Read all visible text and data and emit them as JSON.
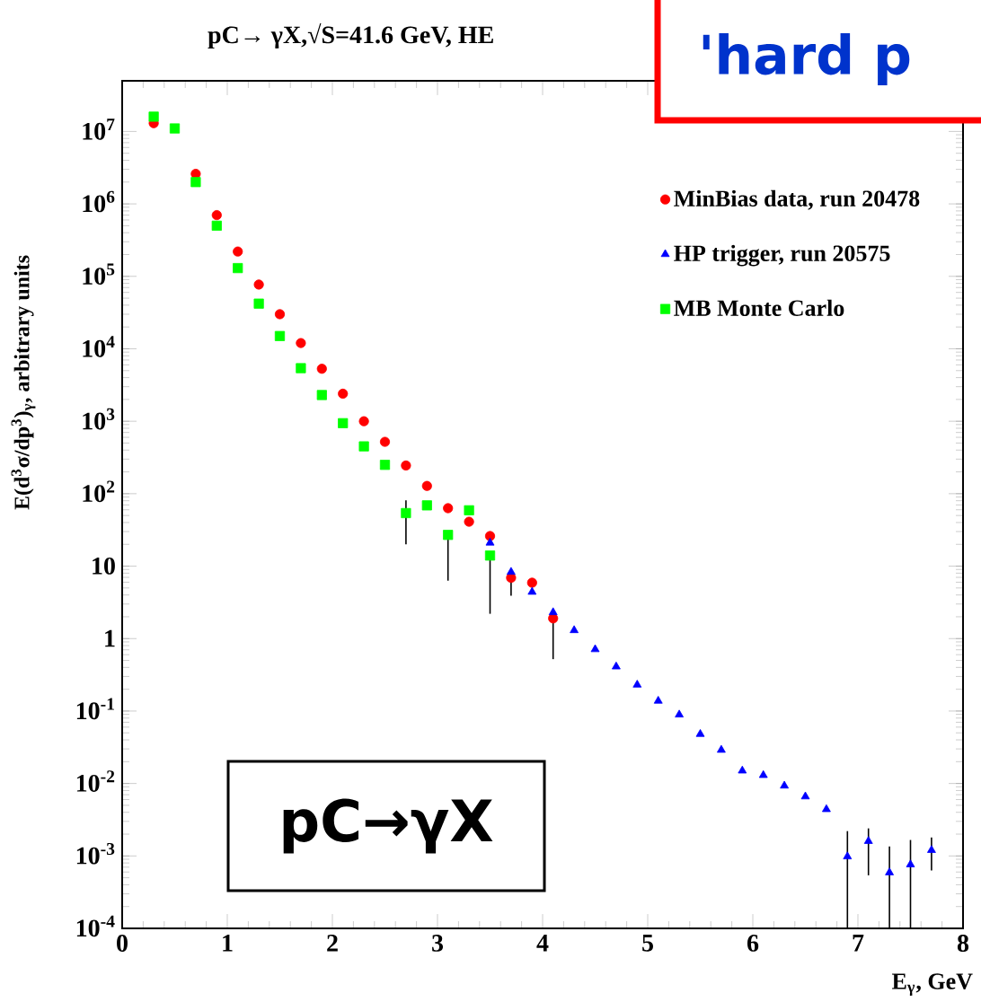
{
  "chart_data": {
    "type": "scatter",
    "title": "pC→ γX,√S=41.6 GeV,  HE",
    "xlabel": "E$_{γ}$, GeV",
    "ylabel": "E(d$^{3}$σ/dp$^{3}$)$_{γ}$, arbitrary units",
    "annotations": [
      "'hard p",
      "pC→γX"
    ],
    "xlim": [
      0,
      8
    ],
    "xticks": [
      0,
      1,
      2,
      3,
      4,
      5,
      6,
      7,
      8
    ],
    "ylim": [
      0.0001,
      50000000
    ],
    "yticks": [
      {
        "value": 0.0001,
        "label": "10$^{-4}$"
      },
      {
        "value": 0.001,
        "label": "10$^{-3}$"
      },
      {
        "value": 0.01,
        "label": "10$^{-2}$"
      },
      {
        "value": 0.1,
        "label": "10$^{-1}$"
      },
      1,
      10,
      {
        "value": 100,
        "label": "10$^{2}$"
      },
      {
        "value": 1000,
        "label": "10$^{3}$"
      },
      {
        "value": 10000,
        "label": "10$^{4}$"
      },
      {
        "value": 100000,
        "label": "10$^{5}$"
      },
      {
        "value": 1000000,
        "label": "10$^{6}$"
      },
      {
        "value": 10000000,
        "label": "10$^{7}$"
      }
    ],
    "log": "y",
    "legend": "top right",
    "series": [
      {
        "name": "MinBias data,  run 20478",
        "color": "#ff0000",
        "marker": "circle",
        "x": [
          0.3,
          0.5,
          0.7,
          0.9,
          1.1,
          1.3,
          1.5,
          1.7,
          1.9,
          2.1,
          2.3,
          2.5,
          2.7,
          2.9,
          3.1,
          3.3,
          3.5,
          3.7,
          3.9,
          4.1
        ],
        "values": [
          13000000,
          null,
          2600000,
          700000,
          220000,
          77000,
          30000,
          12000,
          5300,
          2400,
          1000,
          520,
          245,
          128,
          63,
          41,
          26,
          6.9,
          5.9,
          1.9
        ],
        "errors": [
          null,
          null,
          null,
          null,
          null,
          null,
          null,
          null,
          null,
          null,
          null,
          null,
          null,
          null,
          null,
          null,
          null,
          [
            3.9,
            9
          ],
          null,
          [
            0.52,
            2.5
          ]
        ]
      },
      {
        "name": "HP trigger, run 20575",
        "color": "#0000ff",
        "marker": "triangle",
        "x": [
          3.5,
          3.7,
          3.9,
          4.1,
          4.3,
          4.5,
          4.7,
          4.9,
          5.1,
          5.3,
          5.5,
          5.7,
          5.9,
          6.1,
          6.3,
          6.5,
          6.7,
          6.9,
          7.1,
          7.3,
          7.5,
          7.7
        ],
        "values": [
          21,
          8.3,
          4.4,
          2.3,
          1.3,
          0.71,
          0.41,
          0.23,
          0.138,
          0.089,
          0.048,
          0.029,
          0.015,
          0.013,
          0.0093,
          0.0066,
          0.0044,
          0.00098,
          0.0016,
          0.00059,
          0.00076,
          0.0012
        ],
        "errors": [
          null,
          null,
          null,
          null,
          null,
          null,
          null,
          null,
          null,
          null,
          null,
          null,
          null,
          null,
          null,
          null,
          null,
          [
            0.0001,
            0.0022
          ],
          [
            0.00054,
            0.0024
          ],
          [
            0.0001,
            0.00135
          ],
          [
            0.0001,
            0.00166
          ],
          [
            0.00063,
            0.0018
          ]
        ]
      },
      {
        "name": "MB Monte Carlo",
        "color": "#00ff00",
        "marker": "square",
        "x": [
          0.3,
          0.5,
          0.7,
          0.9,
          1.1,
          1.3,
          1.5,
          1.7,
          1.9,
          2.1,
          2.3,
          2.5,
          2.7,
          2.9,
          3.1,
          3.3,
          3.5
        ],
        "values": [
          16000000,
          11000000,
          2000000,
          500000,
          130000,
          42000,
          15000,
          5400,
          2300,
          940,
          450,
          250,
          54,
          69,
          27,
          59,
          14
        ],
        "errors": [
          null,
          null,
          null,
          null,
          null,
          null,
          null,
          null,
          null,
          null,
          null,
          null,
          [
            20,
            81
          ],
          null,
          [
            6.3,
            30
          ],
          null,
          [
            2.2,
            16
          ]
        ]
      }
    ]
  }
}
